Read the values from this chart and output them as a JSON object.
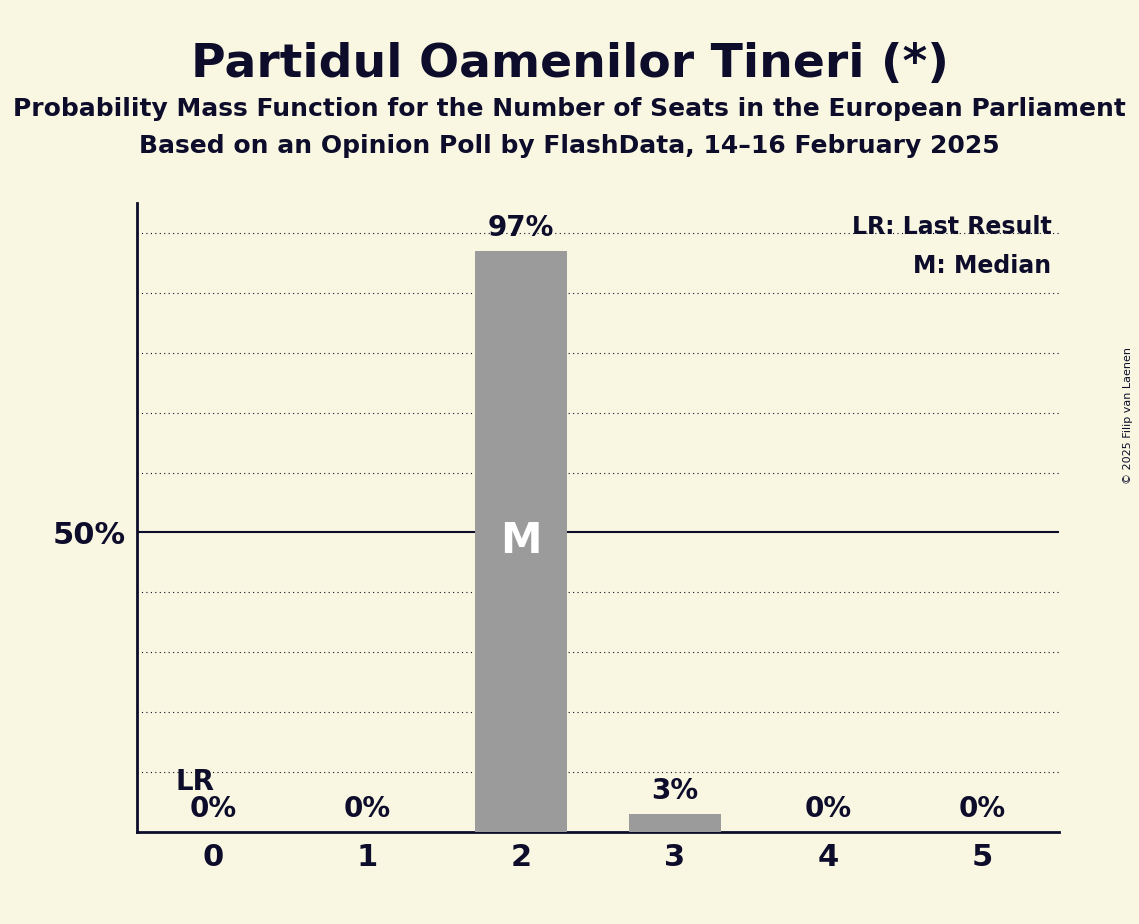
{
  "title": "Partidul Oamenilor Tineri (*)",
  "subtitle1": "Probability Mass Function for the Number of Seats in the European Parliament",
  "subtitle2": "Based on an Opinion Poll by FlashData, 14–16 February 2025",
  "copyright": "© 2025 Filip van Laenen",
  "seats": [
    0,
    1,
    2,
    3,
    4,
    5
  ],
  "probabilities": [
    0,
    0,
    97,
    3,
    0,
    0
  ],
  "bar_color": "#9b9b9b",
  "background_color": "#f9f7e2",
  "title_color": "#0d0d2b",
  "bar_labels": [
    "0%",
    "0%",
    "97%",
    "3%",
    "0%",
    "0%"
  ],
  "median_seat": 2,
  "lr_seat": 0,
  "legend_lr": "LR: Last Result",
  "legend_m": "M: Median",
  "ytick_label": "50%",
  "ytick_value": 50,
  "ylim_max": 105,
  "xlim": [
    -0.5,
    5.5
  ],
  "grid_y_values": [
    10,
    20,
    30,
    40,
    50,
    60,
    70,
    80,
    90,
    100
  ],
  "solid_y": 50,
  "title_fontsize": 34,
  "subtitle_fontsize": 18,
  "tick_fontsize": 22,
  "bar_label_fontsize": 20,
  "legend_fontsize": 17,
  "m_fontsize": 30,
  "lr_fontsize": 20
}
